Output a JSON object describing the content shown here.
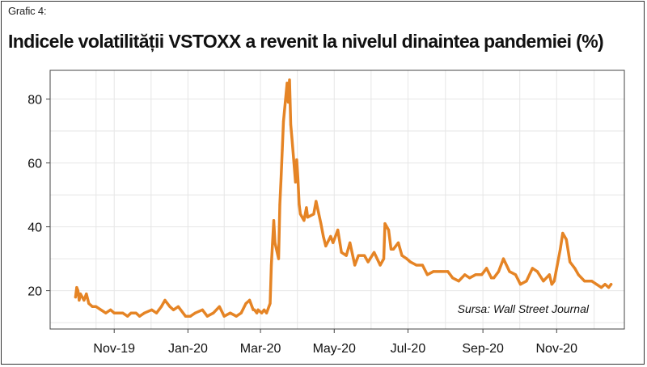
{
  "header": {
    "figure_label": "Grafic 4:",
    "title": "Indicele volatilității VSTOXX a revenit la nivelul dinaintea pandemiei (%)"
  },
  "source": "Sursa: Wall Street Journal",
  "colors": {
    "series": "#e58425",
    "grid": "#e6e6e6",
    "axis": "#444444"
  },
  "chart_data": {
    "type": "line",
    "title": "Indicele volatilității VSTOXX a revenit la nivelul dinaintea pandemiei (%)",
    "xlabel": "",
    "ylabel": "",
    "ylim": [
      8,
      89
    ],
    "xlim": [
      "2019-09-09",
      "2020-12-27"
    ],
    "y_ticks": [
      20,
      40,
      60,
      80
    ],
    "x_ticks": [
      {
        "date": "2019-11-01",
        "label": "Nov-19"
      },
      {
        "date": "2020-01-01",
        "label": "Jan-20"
      },
      {
        "date": "2020-03-01",
        "label": "Mar-20"
      },
      {
        "date": "2020-05-01",
        "label": "May-20"
      },
      {
        "date": "2020-07-01",
        "label": "Jul-20"
      },
      {
        "date": "2020-09-01",
        "label": "Sep-20"
      },
      {
        "date": "2020-11-01",
        "label": "Nov-20"
      }
    ],
    "grid": true,
    "series": [
      {
        "color": "#e58425",
        "x": [
          "2019-09-30",
          "2019-10-01",
          "2019-10-02",
          "2019-10-03",
          "2019-10-04",
          "2019-10-07",
          "2019-10-09",
          "2019-10-11",
          "2019-10-14",
          "2019-10-17",
          "2019-10-21",
          "2019-10-25",
          "2019-10-29",
          "2019-11-01",
          "2019-11-05",
          "2019-11-08",
          "2019-11-12",
          "2019-11-15",
          "2019-11-19",
          "2019-11-22",
          "2019-11-26",
          "2019-12-02",
          "2019-12-06",
          "2019-12-10",
          "2019-12-13",
          "2019-12-17",
          "2019-12-20",
          "2019-12-24",
          "2019-12-30",
          "2020-01-03",
          "2020-01-07",
          "2020-01-13",
          "2020-01-17",
          "2020-01-22",
          "2020-01-27",
          "2020-01-31",
          "2020-02-05",
          "2020-02-10",
          "2020-02-14",
          "2020-02-18",
          "2020-02-21",
          "2020-02-24",
          "2020-02-25",
          "2020-02-27",
          "2020-02-28",
          "2020-03-02",
          "2020-03-04",
          "2020-03-06",
          "2020-03-09",
          "2020-03-10",
          "2020-03-12",
          "2020-03-13",
          "2020-03-16",
          "2020-03-17",
          "2020-03-18",
          "2020-03-19",
          "2020-03-20",
          "2020-03-23",
          "2020-03-24",
          "2020-03-25",
          "2020-03-26",
          "2020-03-27",
          "2020-03-30",
          "2020-03-31",
          "2020-04-01",
          "2020-04-02",
          "2020-04-03",
          "2020-04-06",
          "2020-04-08",
          "2020-04-09",
          "2020-04-14",
          "2020-04-16",
          "2020-04-20",
          "2020-04-22",
          "2020-04-24",
          "2020-04-28",
          "2020-04-30",
          "2020-05-04",
          "2020-05-07",
          "2020-05-11",
          "2020-05-14",
          "2020-05-18",
          "2020-05-21",
          "2020-05-26",
          "2020-05-29",
          "2020-06-03",
          "2020-06-08",
          "2020-06-11",
          "2020-06-12",
          "2020-06-15",
          "2020-06-17",
          "2020-06-19",
          "2020-06-23",
          "2020-06-26",
          "2020-06-30",
          "2020-07-03",
          "2020-07-08",
          "2020-07-13",
          "2020-07-17",
          "2020-07-22",
          "2020-07-28",
          "2020-08-03",
          "2020-08-07",
          "2020-08-12",
          "2020-08-17",
          "2020-08-21",
          "2020-08-26",
          "2020-08-31",
          "2020-09-04",
          "2020-09-08",
          "2020-09-10",
          "2020-09-14",
          "2020-09-18",
          "2020-09-23",
          "2020-09-28",
          "2020-10-02",
          "2020-10-07",
          "2020-10-12",
          "2020-10-16",
          "2020-10-21",
          "2020-10-26",
          "2020-10-28",
          "2020-10-30",
          "2020-11-02",
          "2020-11-04",
          "2020-11-06",
          "2020-11-09",
          "2020-11-12",
          "2020-11-16",
          "2020-11-19",
          "2020-11-24",
          "2020-11-30",
          "2020-12-04",
          "2020-12-08",
          "2020-12-11",
          "2020-12-14",
          "2020-12-16"
        ],
        "y": [
          18,
          21,
          20,
          17,
          19,
          17,
          19,
          16,
          15,
          15,
          14,
          13,
          14,
          13,
          13,
          13,
          12,
          13,
          13,
          12,
          13,
          14,
          13,
          15,
          17,
          15,
          14,
          15,
          12,
          12,
          13,
          14,
          12,
          13,
          15,
          12,
          13,
          12,
          13,
          16,
          17,
          14,
          14,
          13,
          14,
          13,
          14,
          13,
          16,
          28,
          42,
          35,
          30,
          47,
          55,
          64,
          73,
          85,
          79,
          86,
          72,
          68,
          54,
          61,
          55,
          47,
          44,
          42,
          46,
          43,
          44,
          48,
          41,
          37,
          34,
          37,
          35,
          39,
          32,
          31,
          35,
          28,
          31,
          31,
          29,
          32,
          28,
          30,
          41,
          39,
          33,
          33,
          35,
          31,
          30,
          29,
          28,
          28,
          25,
          26,
          26,
          26,
          24,
          23,
          25,
          24,
          25,
          25,
          27,
          24,
          24,
          26,
          30,
          26,
          25,
          22,
          23,
          27,
          26,
          23,
          25,
          22,
          23,
          29,
          33,
          38,
          36,
          29,
          27,
          25,
          23,
          23,
          22,
          21,
          22,
          21,
          22
        ]
      }
    ]
  }
}
